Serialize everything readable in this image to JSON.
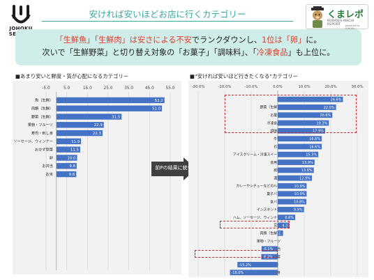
{
  "header": {
    "title": "安ければ安いほどお店に行くカテゴリー",
    "logo_left_text": "JOHOKU SENKOH",
    "logo_right_title": "くまレポ",
    "logo_right_subtitle": "KURASHI-MACHI REPORT",
    "logo_right_powered": "powered by JOHOKU"
  },
  "headline": {
    "line1_a": "「生鮮魚」「生鮮肉」は安さによる不安",
    "line1_b": "でランクダウンし、",
    "line1_c": "1位は「卵」",
    "line1_d": "に。",
    "line2_a": "次いで「生鮮野菜」と切り替え対象の「お菓子」「調味料」、「",
    "line2_b": "冷凍食品",
    "line2_c": "」も上位に。"
  },
  "arrow_label": "前Pの結果に統合",
  "colors": {
    "teal": "#3aa7a3",
    "bar": "#4472c4",
    "highlight": "#c0282e",
    "accent_red": "#e23b2c"
  },
  "chart_data": [
    {
      "type": "bar",
      "orientation": "horizontal",
      "title": "■あまり安いと鮮度・質が心配になるカテゴリー",
      "categories": [
        "魚（生鮮）",
        "肉類（生鮮）",
        "野菜（生鮮）",
        "果物・フルーツ",
        "寿司・刺し身",
        "ハム、ソーセージ、ウィンナー",
        "おかず惣菜",
        "卵",
        "お弁当",
        "お米"
      ],
      "values": [
        52.2,
        51.0,
        31.5,
        22.9,
        22.3,
        11.9,
        11.5,
        10.0,
        9.8,
        9.6
      ],
      "value_labels": [
        "52.2",
        "51.0",
        "31.5",
        "22.9",
        "22.3",
        "11.9",
        "11.5",
        "10.0",
        "9.8",
        "9.6"
      ],
      "xlim": [
        -5,
        55
      ],
      "xticks": [
        "-5.0",
        "5.0",
        "15.0",
        "25.0",
        "35.0",
        "45.0",
        "55.0"
      ],
      "grid": true
    },
    {
      "type": "bar",
      "orientation": "horizontal",
      "title": "■“安ければ安いほど行きたくなる”カテゴリー",
      "categories": [
        "卵",
        "野菜（生鮮）",
        "お菓子",
        "冷凍食品",
        "調味料",
        "牛乳",
        "お米",
        "アイスクリーム・冷凍スイーツ",
        "食用油",
        "飲料",
        "酒類",
        "カレーやシチューなどのルー",
        "菓子パン",
        "食パン",
        "インスタント麺",
        "ハム、ソーセージ、ウィンナー",
        "豆腐",
        "肉類（生鮮）",
        "果物・フルーツ",
        "お弁当",
        "おかず惣菜",
        "魚（生鮮）",
        "寿司・刺身"
      ],
      "values": [
        24.6,
        22.0,
        20.6,
        19.3,
        17.9,
        16.6,
        16.6,
        15.3,
        13.9,
        13.6,
        12.9,
        10.9,
        10.9,
        10.8,
        9.9,
        6.6,
        4.3,
        2.0,
        0.0,
        -6.1,
        -6.2,
        -15.2,
        -18.0
      ],
      "value_labels": [
        "24.6%",
        "22.0%",
        "20.6%",
        "19.3%",
        "17.9%",
        "16.6%",
        "16.6%",
        "15.3%",
        "13.9%",
        "13.6%",
        "12.9%",
        "10.9%",
        "10.9%",
        "10.8%",
        "9.9%",
        "6.6%",
        "4.3",
        "2.",
        "",
        "-6.1%",
        "-6.2%",
        "-15.2%",
        "-18.0%"
      ],
      "xlim": [
        -30,
        30
      ],
      "xticks": [
        "-30.0%",
        "-20.0%",
        "-10.0%",
        "0.0%",
        "10.0%",
        "20.0%",
        "30.0%"
      ],
      "grid": true,
      "highlighted": [
        "卵",
        "野菜（生鮮）",
        "お菓子",
        "冷凍食品",
        "調味料",
        "肉類（生鮮）",
        "魚（生鮮）"
      ]
    }
  ]
}
